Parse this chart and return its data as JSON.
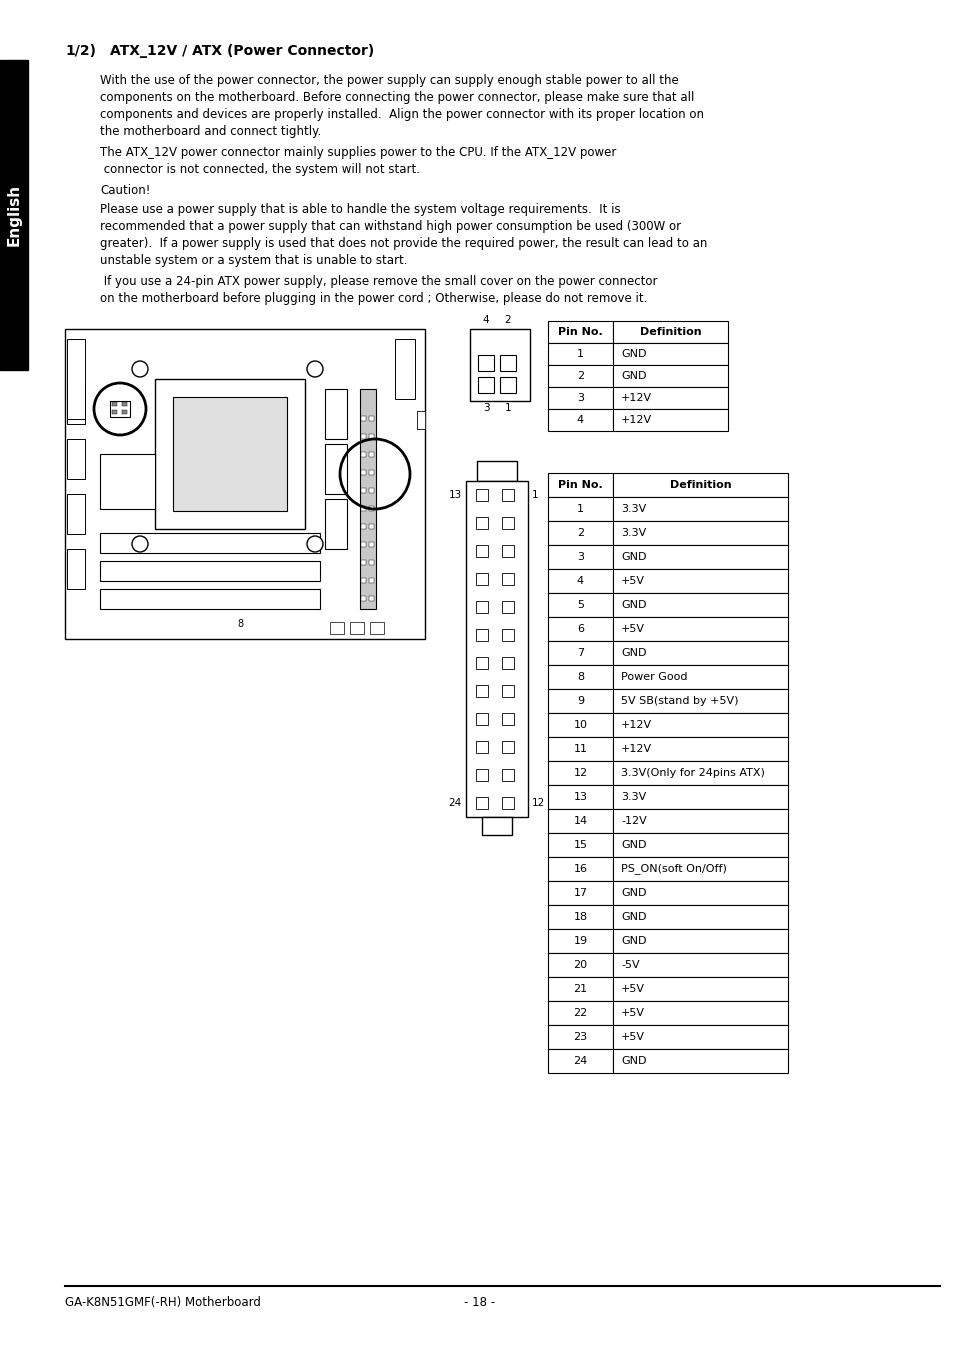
{
  "title_num": "1/2)",
  "title_text": "ATX_12V / ATX (Power Connector)",
  "p1_lines": [
    "With the use of the power connector, the power supply can supply enough stable power to all the",
    "components on the motherboard. Before connecting the power connector, please make sure that all",
    "components and devices are properly installed.  Align the power connector with its proper location on",
    "the motherboard and connect tightly."
  ],
  "p2_lines": [
    "The ATX_12V power connector mainly supplies power to the CPU. If the ATX_12V power",
    " connector is not connected, the system will not start."
  ],
  "p3_lines": [
    "Caution!"
  ],
  "p4_lines": [
    "Please use a power supply that is able to handle the system voltage requirements.  It is",
    "recommended that a power supply that can withstand high power consumption be used (300W or",
    "greater).  If a power supply is used that does not provide the required power, the result can lead to an",
    "unstable system or a system that is unable to start."
  ],
  "p5_lines": [
    " If you use a 24-pin ATX power supply, please remove the small cover on the power connector",
    "on the motherboard before plugging in the power cord ; Otherwise, please do not remove it."
  ],
  "table1_headers": [
    "Pin No.",
    "Definition"
  ],
  "table1_rows": [
    [
      "1",
      "GND"
    ],
    [
      "2",
      "GND"
    ],
    [
      "3",
      "+12V"
    ],
    [
      "4",
      "+12V"
    ]
  ],
  "table2_headers": [
    "Pin No.",
    "Definition"
  ],
  "table2_rows": [
    [
      "1",
      "3.3V"
    ],
    [
      "2",
      "3.3V"
    ],
    [
      "3",
      "GND"
    ],
    [
      "4",
      "+5V"
    ],
    [
      "5",
      "GND"
    ],
    [
      "6",
      "+5V"
    ],
    [
      "7",
      "GND"
    ],
    [
      "8",
      "Power Good"
    ],
    [
      "9",
      "5V SB(stand by +5V)"
    ],
    [
      "10",
      "+12V"
    ],
    [
      "11",
      "+12V"
    ],
    [
      "12",
      "3.3V(Only for 24pins ATX)"
    ],
    [
      "13",
      "3.3V"
    ],
    [
      "14",
      "-12V"
    ],
    [
      "15",
      "GND"
    ],
    [
      "16",
      "PS_ON(soft On/Off)"
    ],
    [
      "17",
      "GND"
    ],
    [
      "18",
      "GND"
    ],
    [
      "19",
      "GND"
    ],
    [
      "20",
      "-5V"
    ],
    [
      "21",
      "+5V"
    ],
    [
      "22",
      "+5V"
    ],
    [
      "23",
      "+5V"
    ],
    [
      "24",
      "GND"
    ]
  ],
  "footer_left": "GA-K8N51GMF(-RH) Motherboard",
  "footer_center": "- 18 -",
  "sidebar_text": "English",
  "bg_color": "#ffffff",
  "sidebar_bg": "#000000",
  "sidebar_text_color": "#ffffff"
}
